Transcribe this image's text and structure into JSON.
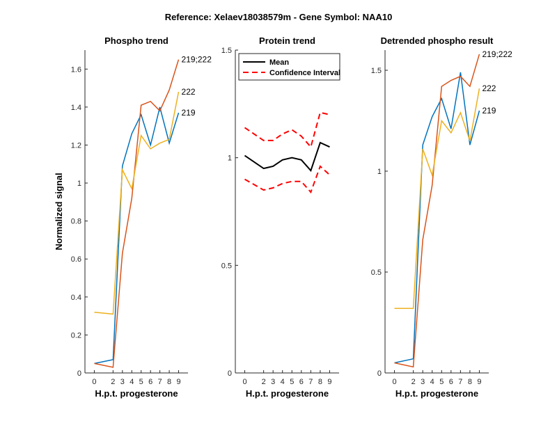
{
  "figure_title": "Reference:  Xelaev18038579m - Gene Symbol:  NAA10",
  "colors": {
    "s219": "#0072BD",
    "s219_222": "#D95319",
    "s222": "#EDB120",
    "mean": "#000000",
    "ci": "#FF0000",
    "axis": "#262626"
  },
  "chart_data": [
    {
      "type": "line",
      "title": "Phospho trend",
      "xlabel": "H.p.t. progesterone",
      "ylabel": "Normalized signal",
      "x": [
        0,
        2,
        3,
        4,
        5,
        6,
        7,
        8,
        9
      ],
      "x_tick_labels": [
        "0",
        "2",
        "3",
        "4",
        "5",
        "6",
        "7",
        "8",
        "9"
      ],
      "xlim": [
        -1,
        10
      ],
      "ylim": [
        0,
        1.7
      ],
      "y_ticks": [
        0,
        0.2,
        0.4,
        0.6,
        0.8,
        1,
        1.2,
        1.4,
        1.6
      ],
      "y_tick_labels": [
        "0",
        "0.2",
        "0.4",
        "0.6",
        "0.8",
        "1",
        "1.2",
        "1.4",
        "1.6"
      ],
      "series": [
        {
          "name": "219",
          "color": "#0072BD",
          "values": [
            0.05,
            0.07,
            1.09,
            1.26,
            1.36,
            1.2,
            1.4,
            1.21,
            1.37
          ]
        },
        {
          "name": "219;222",
          "color": "#D95319",
          "values": [
            0.05,
            0.03,
            0.63,
            0.92,
            1.41,
            1.43,
            1.38,
            1.49,
            1.65
          ]
        },
        {
          "name": "222",
          "color": "#EDB120",
          "values": [
            0.32,
            0.31,
            1.07,
            0.97,
            1.25,
            1.18,
            1.21,
            1.23,
            1.48
          ]
        }
      ]
    },
    {
      "type": "line",
      "title": "Protein trend",
      "xlabel": "H.p.t. progesterone",
      "ylabel": "",
      "x": [
        0,
        2,
        3,
        4,
        5,
        6,
        7,
        8,
        9
      ],
      "x_tick_labels": [
        "0",
        "2",
        "3",
        "4",
        "5",
        "6",
        "7",
        "8",
        "9"
      ],
      "xlim": [
        -1,
        10
      ],
      "ylim": [
        0,
        1.5
      ],
      "y_ticks": [
        0,
        0.5,
        1,
        1.5
      ],
      "y_tick_labels": [
        "0",
        "0.5",
        "1",
        "1.5"
      ],
      "legend": {
        "position": "top-left",
        "entries": [
          "Mean",
          "Confidence Interval"
        ]
      },
      "series": [
        {
          "name": "Mean",
          "color": "#000000",
          "style": "solid",
          "values": [
            1.01,
            0.95,
            0.96,
            0.99,
            1.0,
            0.99,
            0.94,
            1.07,
            1.05
          ]
        },
        {
          "name": "Confidence Interval",
          "color": "#FF0000",
          "style": "dashed",
          "values": [
            1.14,
            1.08,
            1.08,
            1.11,
            1.13,
            1.1,
            1.05,
            1.21,
            1.2
          ]
        },
        {
          "name": "Confidence Interval",
          "color": "#FF0000",
          "style": "dashed",
          "values": [
            0.9,
            0.85,
            0.86,
            0.88,
            0.89,
            0.89,
            0.84,
            0.96,
            0.92
          ]
        }
      ]
    },
    {
      "type": "line",
      "title": "Detrended phospho result",
      "xlabel": "H.p.t. progesterone",
      "ylabel": "",
      "x": [
        0,
        2,
        3,
        4,
        5,
        6,
        7,
        8,
        9
      ],
      "x_tick_labels": [
        "0",
        "2",
        "3",
        "4",
        "5",
        "6",
        "7",
        "8",
        "9"
      ],
      "xlim": [
        -1,
        10
      ],
      "ylim": [
        0,
        1.6
      ],
      "y_ticks": [
        0,
        0.5,
        1,
        1.5
      ],
      "y_tick_labels": [
        "0",
        "0.5",
        "1",
        "1.5"
      ],
      "series": [
        {
          "name": "219",
          "color": "#0072BD",
          "values": [
            0.05,
            0.07,
            1.13,
            1.27,
            1.36,
            1.21,
            1.49,
            1.13,
            1.3
          ]
        },
        {
          "name": "219;222",
          "color": "#D95319",
          "values": [
            0.05,
            0.03,
            0.66,
            0.93,
            1.42,
            1.45,
            1.47,
            1.42,
            1.58
          ]
        },
        {
          "name": "222",
          "color": "#EDB120",
          "values": [
            0.32,
            0.32,
            1.11,
            0.98,
            1.25,
            1.19,
            1.29,
            1.15,
            1.41
          ]
        }
      ]
    }
  ]
}
